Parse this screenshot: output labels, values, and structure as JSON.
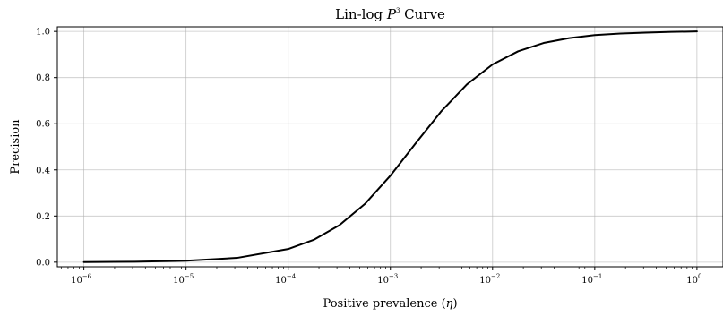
{
  "chart_data": {
    "type": "line",
    "title": "Lin-log P³ Curve",
    "title_parts": {
      "prefix": "Lin-log ",
      "var": "P",
      "sup": "3",
      "suffix": " Curve"
    },
    "xlabel": "Positive prevalence (η)",
    "xlabel_parts": {
      "prefix": "Positive prevalence (",
      "var": "η",
      "suffix": ")"
    },
    "ylabel": "Precision",
    "x_scale": "log",
    "xlim": [
      5.5e-07,
      1.8
    ],
    "ylim": [
      -0.02,
      1.02
    ],
    "grid": true,
    "x_ticks": [
      {
        "value": 1e-06,
        "base": "10",
        "exp": "−6"
      },
      {
        "value": 1e-05,
        "base": "10",
        "exp": "−5"
      },
      {
        "value": 0.0001,
        "base": "10",
        "exp": "−4"
      },
      {
        "value": 0.001,
        "base": "10",
        "exp": "−3"
      },
      {
        "value": 0.01,
        "base": "10",
        "exp": "−2"
      },
      {
        "value": 0.1,
        "base": "10",
        "exp": "−1"
      },
      {
        "value": 1,
        "base": "10",
        "exp": "0"
      }
    ],
    "y_ticks": [
      {
        "value": 0.0,
        "label": "0.0"
      },
      {
        "value": 0.2,
        "label": "0.2"
      },
      {
        "value": 0.4,
        "label": "0.4"
      },
      {
        "value": 0.6,
        "label": "0.6"
      },
      {
        "value": 0.8,
        "label": "0.8"
      },
      {
        "value": 1.0,
        "label": "1.0"
      }
    ],
    "series": [
      {
        "color": "#000000",
        "x": [
          1e-06,
          3.16e-06,
          1e-05,
          3.16e-05,
          0.0001,
          0.000178,
          0.000316,
          0.000562,
          0.001,
          0.00178,
          0.00316,
          0.00562,
          0.01,
          0.0178,
          0.0316,
          0.0562,
          0.1,
          0.178,
          0.316,
          0.562,
          1
        ],
        "y": [
          0.0006,
          0.0019,
          0.006,
          0.0186,
          0.057,
          0.097,
          0.16,
          0.252,
          0.375,
          0.517,
          0.655,
          0.771,
          0.857,
          0.914,
          0.95,
          0.971,
          0.984,
          0.991,
          0.995,
          0.998,
          1.0
        ]
      }
    ]
  }
}
